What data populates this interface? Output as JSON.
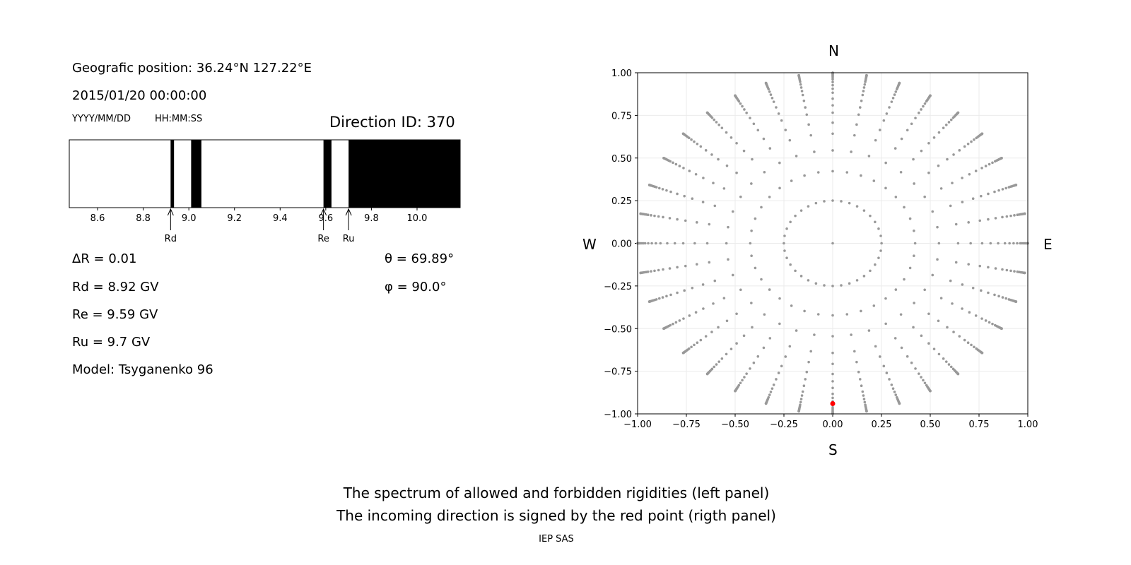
{
  "left_panel": {
    "position": "Geografic position: 36.24°N 127.22°E",
    "datetime": "2015/01/20 00:00:00",
    "date_hint": "YYYY/MM/DD",
    "time_hint": "HH:MM:SS",
    "direction_id": "Direction ID: 370",
    "delta_r": "ΔR = 0.01",
    "rd": "Rd = 8.92 GV",
    "re": "Re = 9.59 GV",
    "ru": "Ru = 9.7 GV",
    "model": "Model: Tsyganenko 96",
    "theta": "θ = 69.89°",
    "phi": "φ = 90.0°"
  },
  "chart_data": [
    {
      "type": "bar",
      "name": "rigidity-spectrum",
      "xlim": [
        8.476,
        10.189
      ],
      "xticks": [
        "8.6",
        "8.8",
        "9.0",
        "9.2",
        "9.4",
        "9.6",
        "9.8",
        "10.0"
      ],
      "forbidden_bands": [
        [
          8.92,
          8.935
        ],
        [
          9.01,
          9.055
        ],
        [
          9.59,
          9.625
        ],
        [
          9.7,
          10.189
        ]
      ],
      "markers": [
        {
          "label": "Rd",
          "value": 8.92
        },
        {
          "label": "Re",
          "value": 9.59
        },
        {
          "label": "Ru",
          "value": 9.7
        }
      ],
      "colors": {
        "forbidden": "#000000",
        "allowed": "#ffffff"
      }
    },
    {
      "type": "scatter",
      "name": "direction-map",
      "xlim": [
        -1,
        1
      ],
      "ylim": [
        -1,
        1
      ],
      "xticks": [
        "−1.00",
        "−0.75",
        "−0.50",
        "−0.25",
        "0.00",
        "0.25",
        "0.50",
        "0.75",
        "1.00"
      ],
      "yticks": [
        "1.00",
        "0.75",
        "0.50",
        "0.25",
        "0.00",
        "−0.25",
        "−0.50",
        "−0.75",
        "−1.00"
      ],
      "compass": {
        "n": "N",
        "s": "S",
        "e": "E",
        "w": "W"
      },
      "grid": true,
      "azimuth_step_deg": 10,
      "zenith_angles_deg": [
        0,
        14.5,
        25,
        33,
        40,
        45,
        50,
        54,
        58,
        62,
        65,
        68,
        71,
        74,
        76,
        78,
        80,
        82,
        84,
        85.5,
        87,
        88,
        89,
        90
      ],
      "selected_point": {
        "x": 0.0,
        "y": -0.94
      },
      "colors": {
        "points": "#999999",
        "selected": "#ff0000"
      }
    }
  ],
  "caption": {
    "line1": "The spectrum of allowed and forbidden rigidities (left panel)",
    "line2": "The incoming direction is signed by the red point (rigth panel)",
    "credit": "IEP SAS"
  }
}
